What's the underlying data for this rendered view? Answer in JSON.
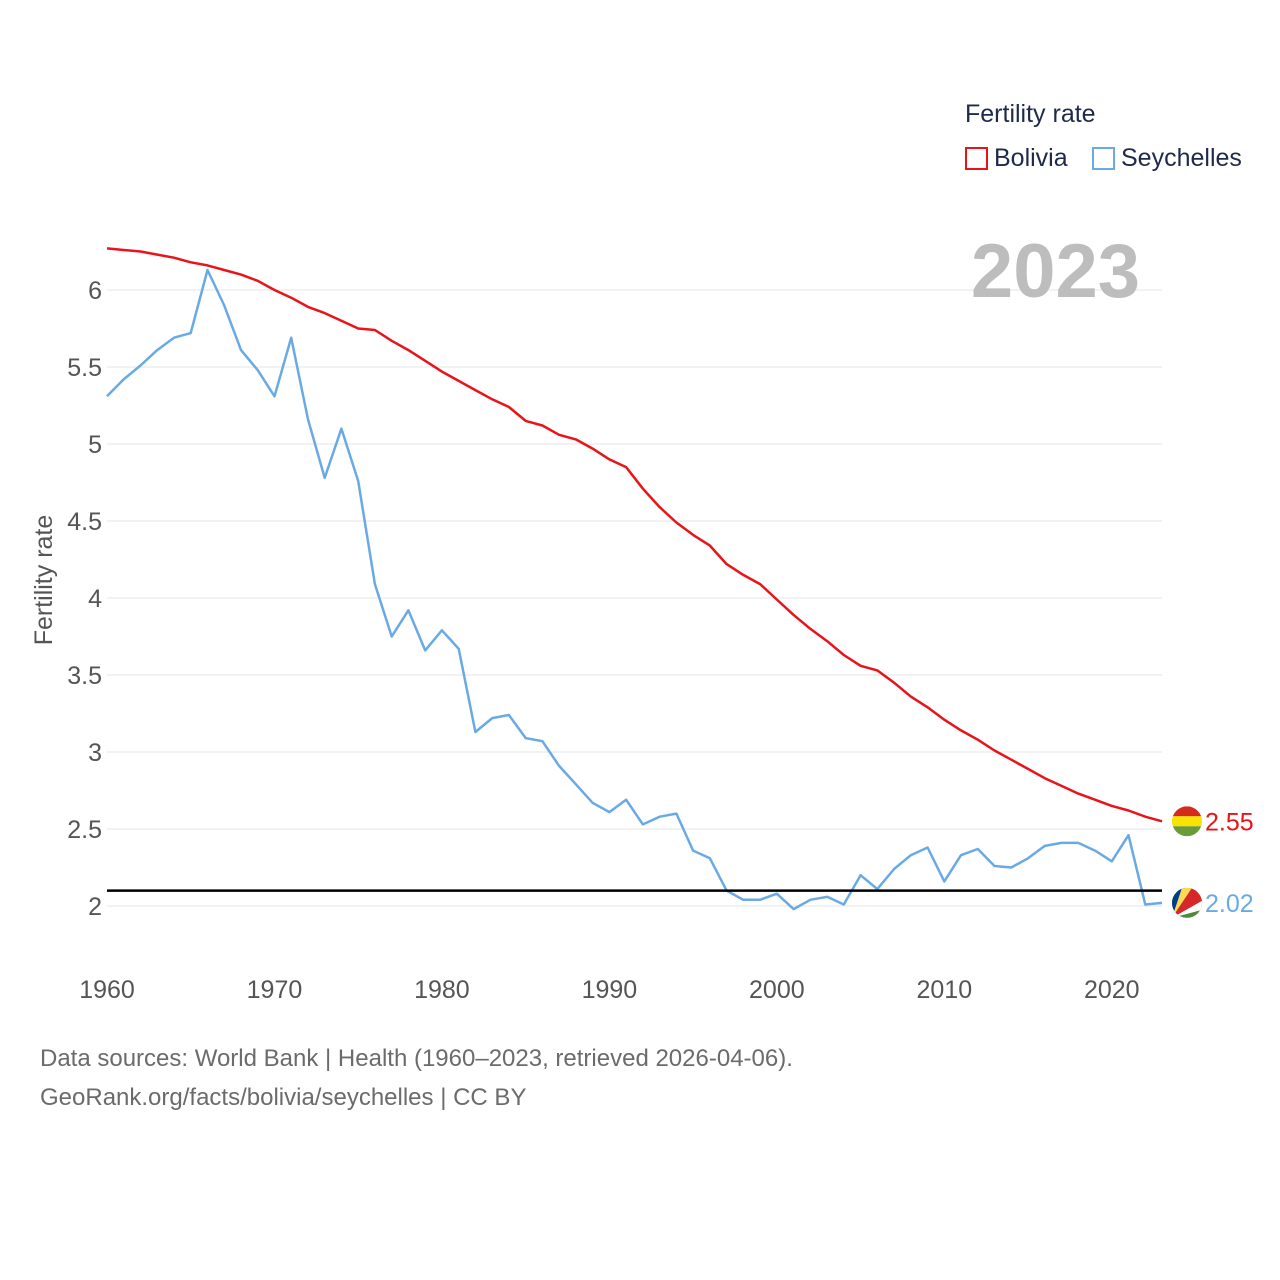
{
  "legend": {
    "title": "Fertility rate",
    "items": [
      {
        "label": "Bolivia",
        "color": "#e8141a"
      },
      {
        "label": "Seychelles",
        "color": "#6aaae4"
      }
    ]
  },
  "year_label": "2023",
  "footer": {
    "line1": "Data sources: World Bank | Health (1960–2023, retrieved 2026-04-06).",
    "line2": "GeoRank.org/facts/bolivia/seychelles | CC BY"
  },
  "chart_data": {
    "type": "line",
    "title": "",
    "xlabel": "",
    "ylabel": "Fertility rate",
    "xlim": [
      1960,
      2023
    ],
    "ylim": [
      1.7,
      6.4
    ],
    "x_ticks": [
      1960,
      1970,
      1980,
      1990,
      2000,
      2010,
      2020
    ],
    "y_ticks": [
      2,
      2.5,
      3,
      3.5,
      4,
      4.5,
      5,
      5.5,
      6
    ],
    "grid": true,
    "reference_line": 2.1,
    "x": [
      1960,
      1961,
      1962,
      1963,
      1964,
      1965,
      1966,
      1967,
      1968,
      1969,
      1970,
      1971,
      1972,
      1973,
      1974,
      1975,
      1976,
      1977,
      1978,
      1979,
      1980,
      1981,
      1982,
      1983,
      1984,
      1985,
      1986,
      1987,
      1988,
      1989,
      1990,
      1991,
      1992,
      1993,
      1994,
      1995,
      1996,
      1997,
      1998,
      1999,
      2000,
      2001,
      2002,
      2003,
      2004,
      2005,
      2006,
      2007,
      2008,
      2009,
      2010,
      2011,
      2012,
      2013,
      2014,
      2015,
      2016,
      2017,
      2018,
      2019,
      2020,
      2021,
      2022,
      2023
    ],
    "series": [
      {
        "name": "Bolivia",
        "color": "#e8141a",
        "end_label": "2.55",
        "values": [
          6.27,
          6.26,
          6.25,
          6.23,
          6.21,
          6.18,
          6.16,
          6.13,
          6.1,
          6.06,
          6.0,
          5.95,
          5.89,
          5.85,
          5.8,
          5.75,
          5.74,
          5.67,
          5.61,
          5.54,
          5.47,
          5.41,
          5.35,
          5.29,
          5.24,
          5.15,
          5.12,
          5.06,
          5.03,
          4.97,
          4.9,
          4.85,
          4.71,
          4.59,
          4.49,
          4.41,
          4.34,
          4.22,
          4.15,
          4.09,
          3.99,
          3.89,
          3.8,
          3.72,
          3.63,
          3.56,
          3.53,
          3.45,
          3.36,
          3.29,
          3.21,
          3.14,
          3.08,
          3.01,
          2.95,
          2.89,
          2.83,
          2.78,
          2.73,
          2.69,
          2.65,
          2.62,
          2.58,
          2.55
        ]
      },
      {
        "name": "Seychelles",
        "color": "#6aaae4",
        "end_label": "2.02",
        "values": [
          5.31,
          5.42,
          5.51,
          5.61,
          5.69,
          5.72,
          6.13,
          5.9,
          5.61,
          5.48,
          5.31,
          5.69,
          5.16,
          4.78,
          5.1,
          4.76,
          4.09,
          3.75,
          3.92,
          3.66,
          3.79,
          3.67,
          3.13,
          3.22,
          3.24,
          3.09,
          3.07,
          2.91,
          2.79,
          2.67,
          2.61,
          2.69,
          2.53,
          2.58,
          2.6,
          2.36,
          2.31,
          2.1,
          2.04,
          2.04,
          2.08,
          1.98,
          2.04,
          2.06,
          2.01,
          2.2,
          2.11,
          2.24,
          2.33,
          2.38,
          2.16,
          2.33,
          2.37,
          2.26,
          2.25,
          2.31,
          2.39,
          2.41,
          2.41,
          2.36,
          2.29,
          2.46,
          2.01,
          2.02
        ]
      }
    ]
  }
}
